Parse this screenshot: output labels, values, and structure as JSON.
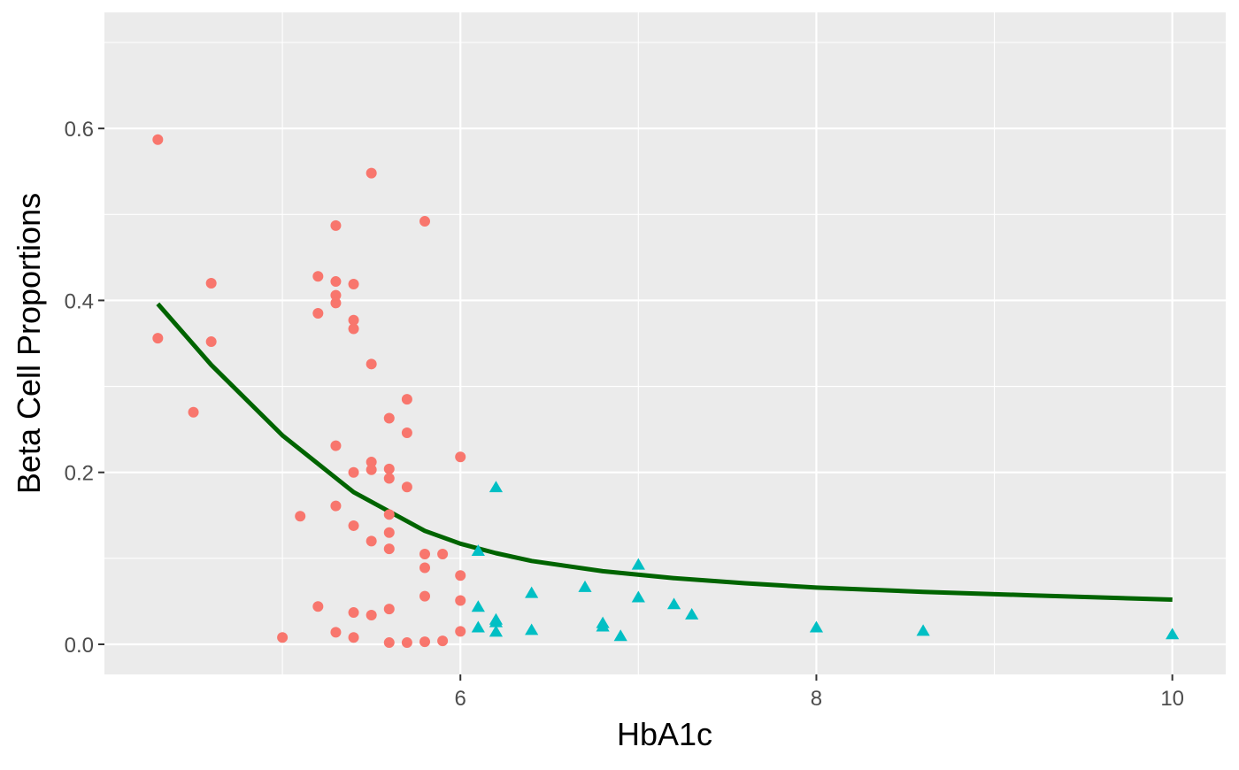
{
  "chart_data": {
    "type": "scatter",
    "xlabel": "HbA1c",
    "ylabel": "Beta Cell Proportions",
    "xlim": [
      4.0,
      10.3
    ],
    "ylim": [
      -0.035,
      0.735
    ],
    "x_ticks": [
      6,
      8,
      10
    ],
    "x_tick_labels": [
      "6",
      "8",
      "10"
    ],
    "x_minor_ticks": [
      5,
      7,
      9
    ],
    "y_ticks": [
      0.0,
      0.2,
      0.4,
      0.6
    ],
    "y_tick_labels": [
      "0.0",
      "0.2",
      "0.4",
      "0.6"
    ],
    "y_minor_ticks": [
      0.1,
      0.3,
      0.5,
      0.7
    ],
    "grid": true,
    "legend": "none",
    "background_color": "#ebebeb",
    "grid_color": "#ffffff",
    "series": [
      {
        "marker": "circle",
        "color": "#f8766d",
        "points": [
          [
            4.3,
            0.587
          ],
          [
            4.3,
            0.356
          ],
          [
            4.5,
            0.27
          ],
          [
            4.6,
            0.42
          ],
          [
            4.6,
            0.352
          ],
          [
            5.0,
            0.008
          ],
          [
            5.1,
            0.149
          ],
          [
            5.2,
            0.428
          ],
          [
            5.2,
            0.385
          ],
          [
            5.2,
            0.044
          ],
          [
            5.3,
            0.487
          ],
          [
            5.3,
            0.422
          ],
          [
            5.3,
            0.406
          ],
          [
            5.3,
            0.397
          ],
          [
            5.3,
            0.231
          ],
          [
            5.3,
            0.161
          ],
          [
            5.3,
            0.014
          ],
          [
            5.4,
            0.419
          ],
          [
            5.4,
            0.377
          ],
          [
            5.4,
            0.367
          ],
          [
            5.4,
            0.2
          ],
          [
            5.4,
            0.138
          ],
          [
            5.4,
            0.037
          ],
          [
            5.4,
            0.008
          ],
          [
            5.5,
            0.548
          ],
          [
            5.5,
            0.326
          ],
          [
            5.5,
            0.212
          ],
          [
            5.5,
            0.203
          ],
          [
            5.5,
            0.12
          ],
          [
            5.5,
            0.034
          ],
          [
            5.6,
            0.263
          ],
          [
            5.6,
            0.204
          ],
          [
            5.6,
            0.193
          ],
          [
            5.6,
            0.151
          ],
          [
            5.6,
            0.13
          ],
          [
            5.6,
            0.111
          ],
          [
            5.6,
            0.041
          ],
          [
            5.6,
            0.002
          ],
          [
            5.7,
            0.285
          ],
          [
            5.7,
            0.246
          ],
          [
            5.7,
            0.183
          ],
          [
            5.7,
            0.002
          ],
          [
            5.8,
            0.492
          ],
          [
            5.8,
            0.105
          ],
          [
            5.8,
            0.089
          ],
          [
            5.8,
            0.056
          ],
          [
            5.8,
            0.003
          ],
          [
            5.9,
            0.105
          ],
          [
            5.9,
            0.004
          ],
          [
            6.0,
            0.218
          ],
          [
            6.0,
            0.08
          ],
          [
            6.0,
            0.051
          ],
          [
            6.0,
            0.015
          ]
        ]
      },
      {
        "marker": "triangle",
        "color": "#00bfc4",
        "points": [
          [
            6.1,
            0.108
          ],
          [
            6.1,
            0.043
          ],
          [
            6.1,
            0.019
          ],
          [
            6.2,
            0.182
          ],
          [
            6.2,
            0.028
          ],
          [
            6.2,
            0.025
          ],
          [
            6.2,
            0.014
          ],
          [
            6.4,
            0.059
          ],
          [
            6.4,
            0.016
          ],
          [
            6.7,
            0.066
          ],
          [
            6.8,
            0.024
          ],
          [
            6.8,
            0.02
          ],
          [
            6.9,
            0.009
          ],
          [
            7.0,
            0.092
          ],
          [
            7.0,
            0.054
          ],
          [
            7.2,
            0.046
          ],
          [
            7.3,
            0.034
          ],
          [
            8.0,
            0.019
          ],
          [
            8.6,
            0.015
          ],
          [
            10.0,
            0.011
          ]
        ]
      }
    ],
    "fit_line": {
      "color": "#006400",
      "x": [
        4.3,
        4.6,
        5.0,
        5.4,
        5.8,
        6.0,
        6.2,
        6.4,
        6.8,
        7.2,
        7.6,
        8.0,
        8.6,
        9.2,
        10.0
      ],
      "y": [
        0.396,
        0.325,
        0.243,
        0.177,
        0.132,
        0.117,
        0.106,
        0.097,
        0.085,
        0.077,
        0.071,
        0.066,
        0.061,
        0.057,
        0.052
      ]
    }
  }
}
